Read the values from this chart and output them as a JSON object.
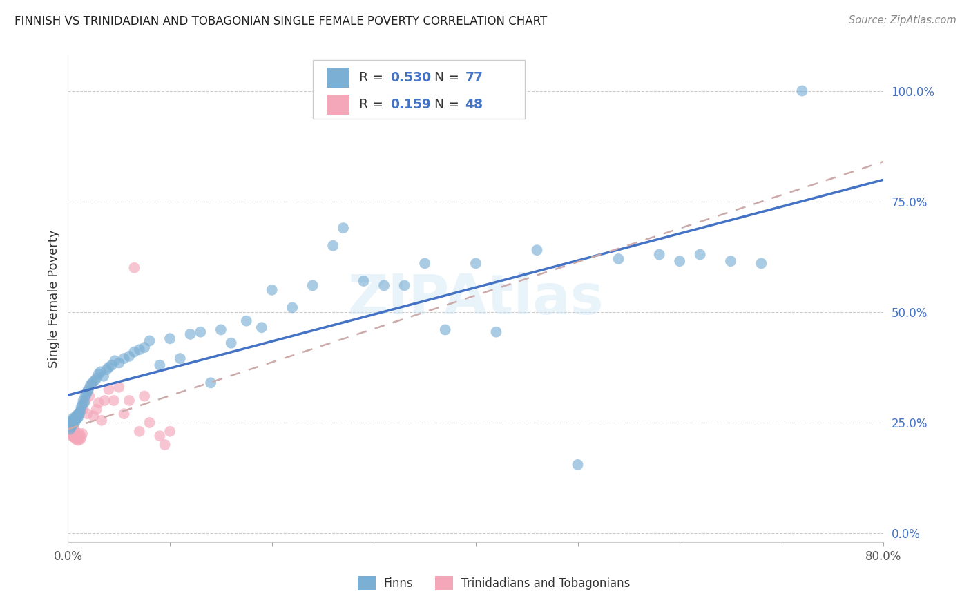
{
  "title": "FINNISH VS TRINIDADIAN AND TOBAGONIAN SINGLE FEMALE POVERTY CORRELATION CHART",
  "source": "Source: ZipAtlas.com",
  "ylabel": "Single Female Poverty",
  "background_color": "#ffffff",
  "grid_color": "#cccccc",
  "xlim": [
    0.0,
    0.8
  ],
  "ylim": [
    -0.02,
    1.08
  ],
  "ytick_vals": [
    0.0,
    0.25,
    0.5,
    0.75,
    1.0
  ],
  "ytick_labels": [
    "0.0%",
    "25.0%",
    "50.0%",
    "75.0%",
    "100.0%"
  ],
  "xtick_vals": [
    0.0,
    0.1,
    0.2,
    0.3,
    0.4,
    0.5,
    0.6,
    0.7,
    0.8
  ],
  "xtick_labels": [
    "0.0%",
    "",
    "",
    "",
    "",
    "",
    "",
    "",
    "80.0%"
  ],
  "color_finns": "#7bafd4",
  "color_trini": "#f4a7b9",
  "color_line_finns": "#4472c4",
  "color_line_trini": "#ccaaaa",
  "color_blue_text": "#4472c4",
  "legend_r1": "0.530",
  "legend_n1": "77",
  "legend_r2": "0.159",
  "legend_n2": "48",
  "finns_x": [
    0.002,
    0.003,
    0.003,
    0.004,
    0.004,
    0.005,
    0.005,
    0.006,
    0.006,
    0.007,
    0.007,
    0.008,
    0.008,
    0.009,
    0.009,
    0.01,
    0.01,
    0.011,
    0.011,
    0.012,
    0.013,
    0.014,
    0.015,
    0.016,
    0.017,
    0.018,
    0.019,
    0.02,
    0.022,
    0.024,
    0.026,
    0.028,
    0.03,
    0.032,
    0.035,
    0.038,
    0.04,
    0.043,
    0.046,
    0.05,
    0.055,
    0.06,
    0.065,
    0.07,
    0.075,
    0.08,
    0.09,
    0.1,
    0.11,
    0.12,
    0.13,
    0.14,
    0.15,
    0.16,
    0.175,
    0.19,
    0.2,
    0.22,
    0.24,
    0.26,
    0.27,
    0.29,
    0.31,
    0.33,
    0.35,
    0.37,
    0.4,
    0.42,
    0.46,
    0.5,
    0.54,
    0.58,
    0.6,
    0.62,
    0.65,
    0.68,
    0.72
  ],
  "finns_y": [
    0.235,
    0.25,
    0.24,
    0.245,
    0.255,
    0.25,
    0.26,
    0.248,
    0.258,
    0.252,
    0.26,
    0.258,
    0.265,
    0.26,
    0.265,
    0.262,
    0.27,
    0.268,
    0.272,
    0.275,
    0.285,
    0.29,
    0.3,
    0.295,
    0.31,
    0.315,
    0.32,
    0.325,
    0.335,
    0.34,
    0.345,
    0.35,
    0.36,
    0.365,
    0.355,
    0.37,
    0.375,
    0.38,
    0.39,
    0.385,
    0.395,
    0.4,
    0.41,
    0.415,
    0.42,
    0.435,
    0.38,
    0.44,
    0.395,
    0.45,
    0.455,
    0.34,
    0.46,
    0.43,
    0.48,
    0.465,
    0.55,
    0.51,
    0.56,
    0.65,
    0.69,
    0.57,
    0.56,
    0.56,
    0.61,
    0.46,
    0.61,
    0.455,
    0.64,
    0.155,
    0.62,
    0.63,
    0.615,
    0.63,
    0.615,
    0.61,
    1.0
  ],
  "trini_x": [
    0.002,
    0.002,
    0.003,
    0.003,
    0.004,
    0.004,
    0.005,
    0.005,
    0.005,
    0.006,
    0.006,
    0.006,
    0.007,
    0.007,
    0.007,
    0.008,
    0.008,
    0.009,
    0.009,
    0.01,
    0.01,
    0.011,
    0.011,
    0.012,
    0.013,
    0.014,
    0.015,
    0.017,
    0.019,
    0.021,
    0.023,
    0.025,
    0.028,
    0.03,
    0.033,
    0.036,
    0.04,
    0.045,
    0.05,
    0.055,
    0.06,
    0.065,
    0.07,
    0.075,
    0.08,
    0.09,
    0.095,
    0.1
  ],
  "trini_y": [
    0.228,
    0.235,
    0.225,
    0.232,
    0.22,
    0.228,
    0.218,
    0.225,
    0.23,
    0.22,
    0.228,
    0.235,
    0.215,
    0.222,
    0.23,
    0.212,
    0.22,
    0.215,
    0.225,
    0.21,
    0.22,
    0.215,
    0.225,
    0.212,
    0.218,
    0.225,
    0.28,
    0.3,
    0.27,
    0.31,
    0.335,
    0.265,
    0.28,
    0.295,
    0.255,
    0.3,
    0.325,
    0.3,
    0.33,
    0.27,
    0.3,
    0.6,
    0.23,
    0.31,
    0.25,
    0.22,
    0.2,
    0.23
  ]
}
